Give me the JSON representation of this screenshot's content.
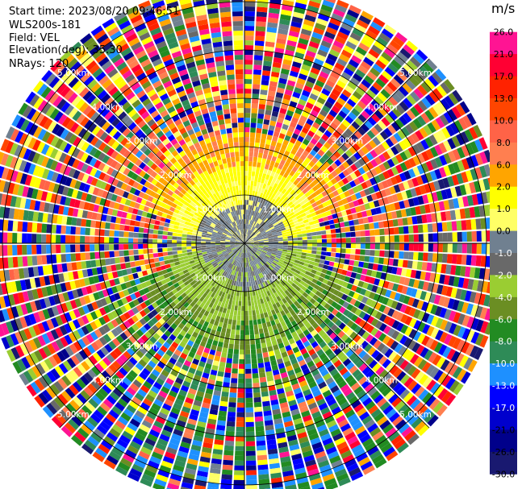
{
  "header": {
    "start_time": "Start time: 2023/08/20 09:46:51",
    "site": "WLS200s-181",
    "field": "Field: VEL",
    "elevation": "Elevation(deg): 35.30",
    "nrays": "NRays: 120"
  },
  "chart_data": {
    "type": "heatmap",
    "projection": "polar PPI scan",
    "field": "VEL",
    "units": "m/s",
    "range_rings_km": [
      1,
      2,
      3,
      4,
      5
    ],
    "ring_labels": [
      "1.00km",
      "2.00km",
      "3.00km",
      "4.00km",
      "5.00km"
    ],
    "max_range_km": 5.4,
    "n_rays": 120,
    "colorbar": {
      "unit_label": "m/s",
      "ticks": [
        "26.0",
        "21.0",
        "17.0",
        "13.0",
        "10.0",
        "8.0",
        "6.0",
        "2.0",
        "1.0",
        "0.0",
        "-1.0",
        "-2.0",
        "-4.0",
        "-6.0",
        "-8.0",
        "-10.0",
        "-13.0",
        "-17.0",
        "-21.0",
        "-26.0",
        "-30.0"
      ],
      "colors": [
        "#ff1493",
        "#ff0033",
        "#ff2200",
        "#ff4500",
        "#ff6347",
        "#ff7f50",
        "#ffa500",
        "#ffff00",
        "#ffff66",
        "#708090",
        "#696969",
        "#9acd32",
        "#6b8e23",
        "#228b22",
        "#2e8b57",
        "#1e90ff",
        "#0000ff",
        "#0000cd",
        "#00008b",
        "#191970"
      ]
    },
    "approx_velocity_by_range": [
      {
        "range_km": "0-0.9",
        "dominant": "0.0 / -1.0 (grey)"
      },
      {
        "range_km": "0.9-1.6",
        "dominant": "2.0 north, -2.0 south"
      },
      {
        "range_km": "1.6-2.3",
        "dominant": "6.0 north, -4.0 south"
      },
      {
        "range_km": "2.3-5.4",
        "dominant": "noise (all values)"
      }
    ]
  }
}
